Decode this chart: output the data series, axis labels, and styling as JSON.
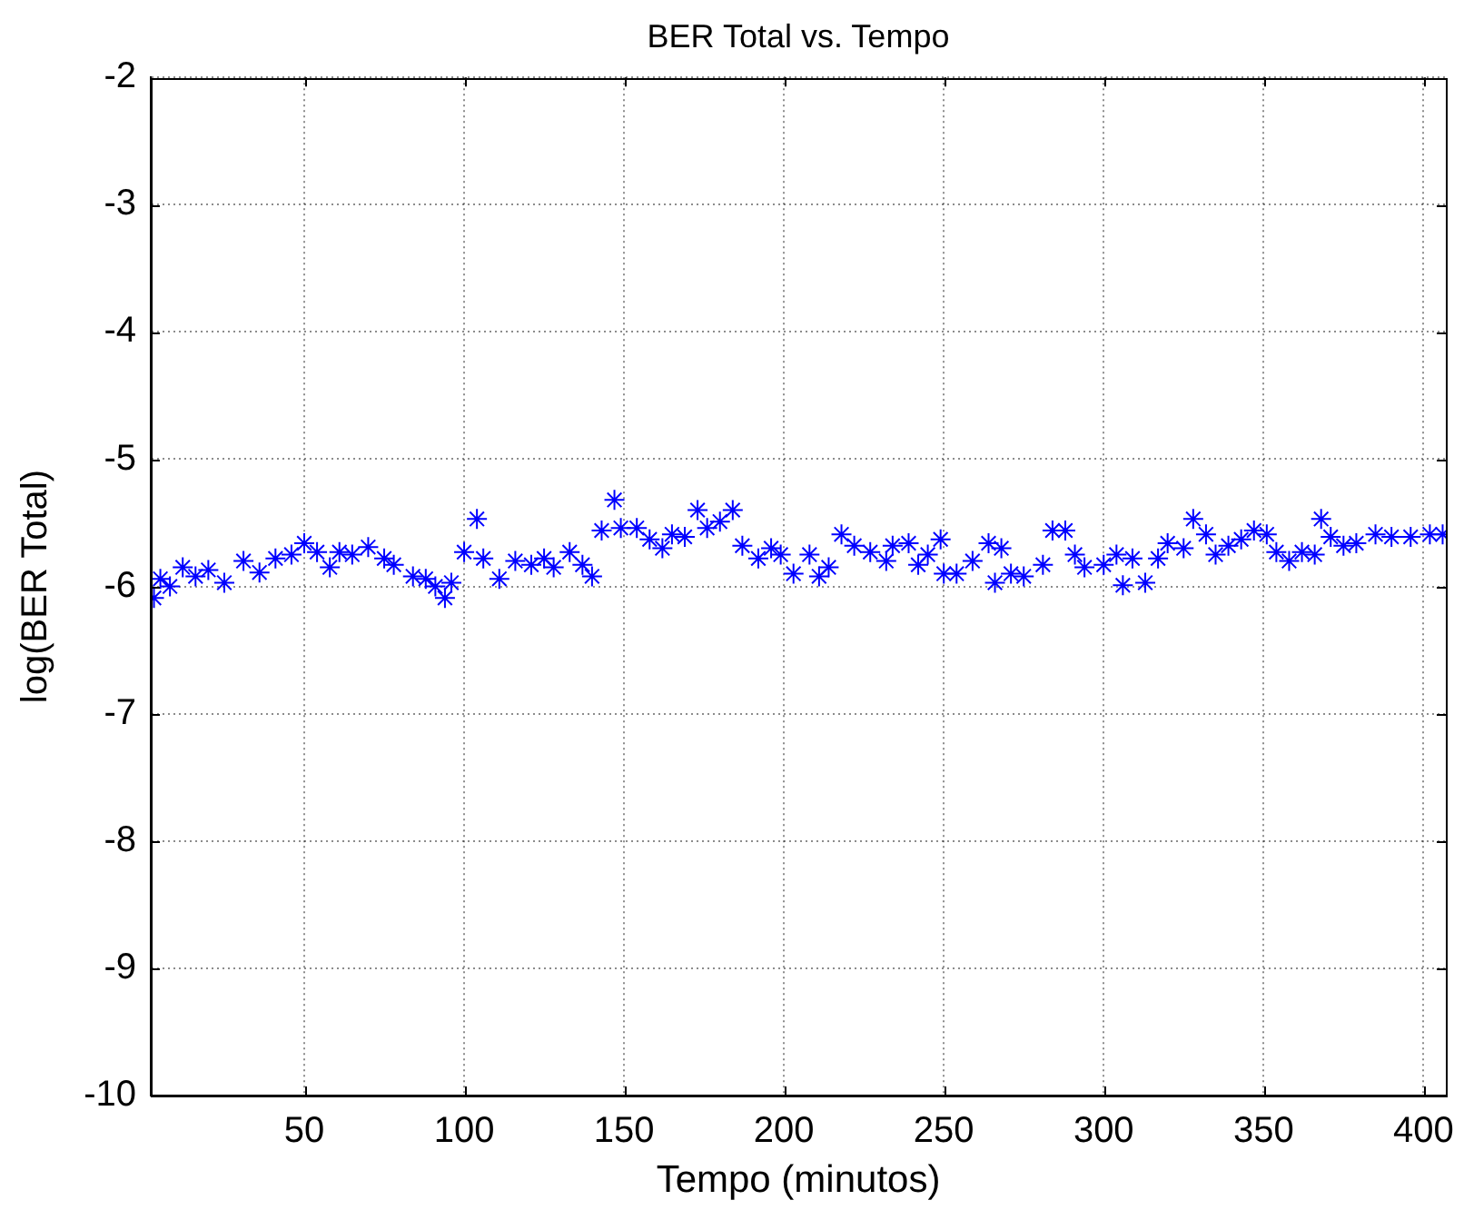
{
  "chart_data": {
    "type": "scatter",
    "title": "BER Total vs. Tempo",
    "xlabel": "Tempo (minutos)",
    "ylabel": "log(BER Total)",
    "x": [
      3,
      5,
      8,
      12,
      16,
      20,
      25,
      31,
      36,
      41,
      46,
      50,
      54,
      58,
      61,
      65,
      70,
      75,
      78,
      84,
      88,
      91,
      94,
      96,
      100,
      104,
      106,
      111,
      116,
      121,
      125,
      128,
      133,
      137,
      140,
      143,
      147,
      149,
      154,
      158,
      162,
      165,
      169,
      173,
      176,
      180,
      184,
      187,
      192,
      196,
      199,
      203,
      208,
      211,
      214,
      218,
      222,
      227,
      232,
      234,
      239,
      242,
      245,
      249,
      250,
      254,
      259,
      264,
      266,
      268,
      271,
      275,
      281,
      284,
      288,
      291,
      294,
      300,
      304,
      306,
      309,
      313,
      317,
      320,
      325,
      328,
      332,
      335,
      339,
      343,
      347,
      351,
      354,
      358,
      362,
      366,
      368,
      371,
      375,
      379,
      385,
      390,
      396,
      402,
      406
    ],
    "values": [
      -6.09,
      -5.94,
      -6.0,
      -5.85,
      -5.92,
      -5.87,
      -5.97,
      -5.8,
      -5.89,
      -5.78,
      -5.75,
      -5.66,
      -5.73,
      -5.85,
      -5.73,
      -5.75,
      -5.69,
      -5.78,
      -5.83,
      -5.92,
      -5.94,
      -6.0,
      -6.09,
      -5.97,
      -5.73,
      -5.47,
      -5.78,
      -5.94,
      -5.8,
      -5.83,
      -5.78,
      -5.85,
      -5.73,
      -5.83,
      -5.92,
      -5.56,
      -5.32,
      -5.54,
      -5.54,
      -5.63,
      -5.7,
      -5.59,
      -5.61,
      -5.4,
      -5.54,
      -5.49,
      -5.4,
      -5.68,
      -5.78,
      -5.7,
      -5.75,
      -5.9,
      -5.75,
      -5.92,
      -5.85,
      -5.59,
      -5.68,
      -5.73,
      -5.8,
      -5.68,
      -5.66,
      -5.83,
      -5.75,
      -5.63,
      -5.9,
      -5.9,
      -5.8,
      -5.66,
      -5.97,
      -5.7,
      -5.9,
      -5.92,
      -5.83,
      -5.56,
      -5.56,
      -5.75,
      -5.85,
      -5.83,
      -5.75,
      -5.99,
      -5.78,
      -5.97,
      -5.78,
      -5.66,
      -5.7,
      -5.47,
      -5.59,
      -5.75,
      -5.68,
      -5.63,
      -5.56,
      -5.59,
      -5.73,
      -5.8,
      -5.73,
      -5.75,
      -5.47,
      -5.61,
      -5.68,
      -5.66,
      -5.59,
      -5.61,
      -5.61,
      -5.59,
      -5.59
    ],
    "color": "#0000ff",
    "marker": "cross",
    "xlim": [
      2,
      407
    ],
    "ylim": [
      -10,
      -2
    ],
    "xticks": [
      50,
      100,
      150,
      200,
      250,
      300,
      350,
      400
    ],
    "yticks": [
      -10,
      -9,
      -8,
      -7,
      -6,
      -5,
      -4,
      -3,
      -2
    ],
    "grid": true
  }
}
